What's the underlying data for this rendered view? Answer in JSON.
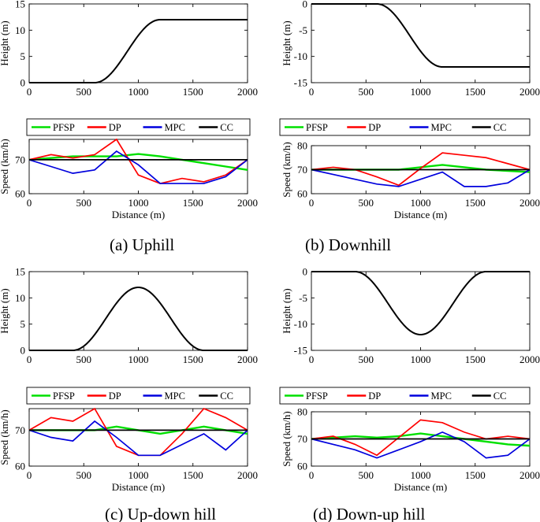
{
  "colors": {
    "PFSP": "#00e000",
    "DP": "#ff0000",
    "MPC": "#0000dd",
    "CC": "#000000"
  },
  "legend": [
    "PFSP",
    "DP",
    "MPC",
    "CC"
  ],
  "chart_data": [
    {
      "type": "line",
      "panel": "a",
      "kind": "height",
      "ylabel": "Height (m)",
      "xlim": [
        0,
        2000
      ],
      "ylim": [
        0,
        15
      ],
      "xticks": [
        0,
        500,
        1000,
        1500,
        2000
      ],
      "yticks": [
        0,
        5,
        10,
        15
      ],
      "profile": {
        "shape": "ramp",
        "start": 600,
        "end": 1200,
        "from": 0,
        "to": 12
      }
    },
    {
      "type": "line",
      "panel": "a",
      "kind": "speed",
      "xlabel": "Distance (m)",
      "ylabel": "Speed (km/h)",
      "caption": "(a) Uphill",
      "xlim": [
        0,
        2000
      ],
      "ylim": [
        60,
        76
      ],
      "xticks": [
        0,
        500,
        1000,
        1500,
        2000
      ],
      "yticks": [
        60,
        70
      ],
      "x": [
        0,
        200,
        400,
        600,
        800,
        1000,
        1200,
        1400,
        1600,
        1800,
        2000
      ],
      "series": [
        {
          "name": "PFSP",
          "values": [
            70,
            70.5,
            71,
            71,
            71,
            71.7,
            71,
            70,
            69,
            68,
            67
          ]
        },
        {
          "name": "DP",
          "values": [
            70,
            71.5,
            70.5,
            71.5,
            76,
            65.5,
            63,
            64.5,
            63.5,
            65.5,
            70
          ]
        },
        {
          "name": "MPC",
          "values": [
            70,
            68,
            66,
            67,
            72.5,
            68.5,
            63,
            63,
            63,
            65,
            70
          ]
        },
        {
          "name": "CC",
          "values": [
            70,
            70,
            70,
            70,
            70,
            70,
            70,
            70,
            70,
            70,
            70
          ]
        }
      ]
    },
    {
      "type": "line",
      "panel": "b",
      "kind": "height",
      "ylabel": "Height (m)",
      "xlim": [
        0,
        2000
      ],
      "ylim": [
        -15,
        0
      ],
      "xticks": [
        0,
        500,
        1000,
        1500,
        2000
      ],
      "yticks": [
        -15,
        -10,
        -5,
        0
      ],
      "profile": {
        "shape": "ramp",
        "start": 600,
        "end": 1200,
        "from": 0,
        "to": -12
      }
    },
    {
      "type": "line",
      "panel": "b",
      "kind": "speed",
      "xlabel": "Distance (m)",
      "ylabel": "Speed (km/h)",
      "caption": "(b) Downhill",
      "xlim": [
        0,
        2000
      ],
      "ylim": [
        60,
        80
      ],
      "xticks": [
        0,
        500,
        1000,
        1500,
        2000
      ],
      "yticks": [
        60,
        70,
        80
      ],
      "x": [
        0,
        200,
        400,
        600,
        800,
        1000,
        1200,
        1400,
        1600,
        1800,
        2000
      ],
      "series": [
        {
          "name": "PFSP",
          "values": [
            70,
            70,
            70,
            70,
            70,
            71,
            72,
            71,
            70,
            69.5,
            69
          ]
        },
        {
          "name": "DP",
          "values": [
            70,
            71,
            70,
            67,
            63.5,
            70.5,
            77,
            76,
            75,
            72.5,
            70
          ]
        },
        {
          "name": "MPC",
          "values": [
            70,
            68,
            66,
            64,
            63,
            66,
            69,
            63,
            63,
            64.5,
            70
          ]
        },
        {
          "name": "CC",
          "values": [
            70,
            70,
            70,
            70,
            70,
            70,
            70,
            70,
            70,
            70,
            70
          ]
        }
      ]
    },
    {
      "type": "line",
      "panel": "c",
      "kind": "height",
      "ylabel": "Height (m)",
      "xlim": [
        0,
        2000
      ],
      "ylim": [
        0,
        15
      ],
      "xticks": [
        0,
        500,
        1000,
        1500,
        2000
      ],
      "yticks": [
        0,
        5,
        10,
        15
      ],
      "profile": {
        "shape": "bump",
        "start": 400,
        "end": 1600,
        "from": 0,
        "to": 12
      }
    },
    {
      "type": "line",
      "panel": "c",
      "kind": "speed",
      "xlabel": "Distance (m)",
      "ylabel": "Speed (km/h)",
      "caption": "(c) Up-down hill",
      "xlim": [
        0,
        2000
      ],
      "ylim": [
        60,
        76
      ],
      "xticks": [
        0,
        500,
        1000,
        1500,
        2000
      ],
      "yticks": [
        60,
        70
      ],
      "x": [
        0,
        200,
        400,
        600,
        800,
        1000,
        1200,
        1400,
        1600,
        1800,
        2000
      ],
      "series": [
        {
          "name": "PFSP",
          "values": [
            70,
            70,
            70,
            70,
            71,
            70,
            69,
            70,
            71,
            70,
            69
          ]
        },
        {
          "name": "DP",
          "values": [
            70,
            73.5,
            72.5,
            76,
            65.5,
            63,
            63,
            69,
            76,
            73.5,
            70
          ]
        },
        {
          "name": "MPC",
          "values": [
            70,
            68,
            67,
            72.5,
            68,
            63,
            63,
            66,
            69,
            64.5,
            70
          ]
        },
        {
          "name": "CC",
          "values": [
            70,
            70,
            70,
            70,
            70,
            70,
            70,
            70,
            70,
            70,
            70
          ]
        }
      ]
    },
    {
      "type": "line",
      "panel": "d",
      "kind": "height",
      "ylabel": "Height (m)",
      "xlim": [
        0,
        2000
      ],
      "ylim": [
        -15,
        0
      ],
      "xticks": [
        0,
        500,
        1000,
        1500,
        2000
      ],
      "yticks": [
        -15,
        -10,
        -5,
        0
      ],
      "profile": {
        "shape": "bump",
        "start": 400,
        "end": 1600,
        "from": 0,
        "to": -12
      }
    },
    {
      "type": "line",
      "panel": "d",
      "kind": "speed",
      "xlabel": "Distance (m)",
      "ylabel": "Speed (km/h)",
      "caption": "(d) Down-up hill",
      "xlim": [
        0,
        2000
      ],
      "ylim": [
        60,
        80
      ],
      "xticks": [
        0,
        500,
        1000,
        1500,
        2000
      ],
      "yticks": [
        60,
        70,
        80
      ],
      "x": [
        0,
        200,
        400,
        600,
        800,
        1000,
        1200,
        1400,
        1600,
        1800,
        2000
      ],
      "series": [
        {
          "name": "PFSP",
          "values": [
            70,
            70.5,
            71,
            70.5,
            71,
            72,
            71,
            70,
            69,
            68,
            67.5
          ]
        },
        {
          "name": "DP",
          "values": [
            70,
            71,
            68,
            64,
            70.5,
            77,
            76,
            72.5,
            70,
            71,
            70
          ]
        },
        {
          "name": "MPC",
          "values": [
            70,
            68,
            66,
            63,
            66,
            69,
            72.5,
            69,
            63,
            64,
            70
          ]
        },
        {
          "name": "CC",
          "values": [
            70,
            70,
            70,
            70,
            70,
            70,
            70,
            70,
            70,
            70,
            70
          ]
        }
      ]
    }
  ]
}
